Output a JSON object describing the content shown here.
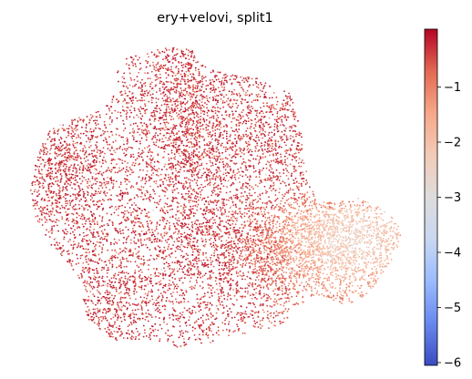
{
  "chart_data": {
    "type": "scatter",
    "title": "ery+velovi, split1",
    "xlabel": "",
    "ylabel": "",
    "axes_visible": false,
    "grid": false,
    "point_count_approx": 9000,
    "colorbar": {
      "colormap": "coolwarm",
      "range": [
        -6.05,
        0.05
      ],
      "ticks": [
        -1,
        -2,
        -3,
        -4,
        -5,
        -6
      ],
      "tick_labels": [
        "−1",
        "−2",
        "−3",
        "−4",
        "−5",
        "−6"
      ],
      "placement": "right"
    },
    "colormap_stops": [
      "#3b4cc0",
      "#6788ee",
      "#9abbff",
      "#c9d7f0",
      "#dddcdc",
      "#f2cbb7",
      "#f7a889",
      "#e26952",
      "#b40426"
    ],
    "regions": [
      {
        "name": "left lobe",
        "value_mean": -0.35
      },
      {
        "name": "upper-middle lobe",
        "value_mean": -0.3
      },
      {
        "name": "lower-left lobe",
        "value_mean": -0.4
      },
      {
        "name": "lower-right lobe",
        "value_mean": -1.1
      },
      {
        "name": "right-most tip",
        "value_mean": -1.7
      }
    ]
  }
}
